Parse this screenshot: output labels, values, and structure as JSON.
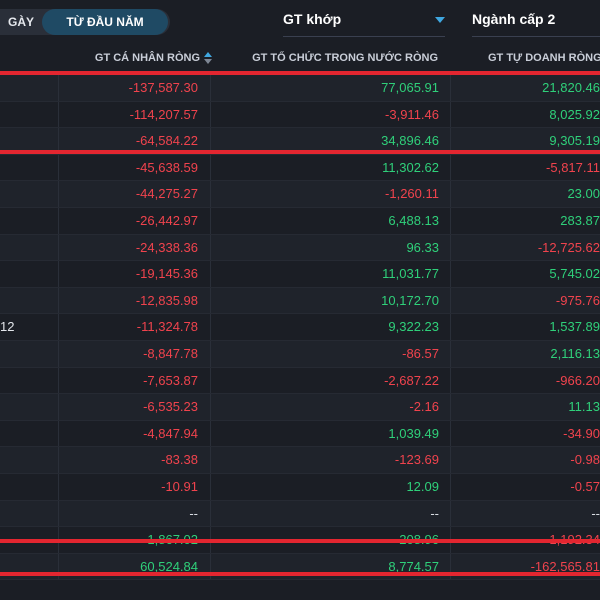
{
  "toolbar": {
    "day_label": "GÀY",
    "ytd_label": "TỪ ĐẦU NĂM",
    "value_type": "GT khớp",
    "sector_level": "Ngành cấp 2"
  },
  "columns": {
    "individual": "GT CÁ NHÂN RÒNG",
    "domestic_institution": "GT TỔ CHỨC TRONG NƯỚC RÒNG",
    "proprietary": "GT TỰ DOANH RÒNG"
  },
  "rows": [
    {
      "name": "",
      "v1": "-137,587.30",
      "v2": "77,065.91",
      "v3": "21,820.46"
    },
    {
      "name": "",
      "v1": "-114,207.57",
      "v2": "-3,911.46",
      "v3": "8,025.92"
    },
    {
      "name": "",
      "v1": "-64,584.22",
      "v2": "34,896.46",
      "v3": "9,305.19"
    },
    {
      "name": "",
      "v1": "-45,638.59",
      "v2": "11,302.62",
      "v3": "-5,817.11"
    },
    {
      "name": "",
      "v1": "-44,275.27",
      "v2": "-1,260.11",
      "v3": "23.00"
    },
    {
      "name": "",
      "v1": "-26,442.97",
      "v2": "6,488.13",
      "v3": "283.87"
    },
    {
      "name": "",
      "v1": "-24,338.36",
      "v2": "96.33",
      "v3": "-12,725.62"
    },
    {
      "name": "",
      "v1": "-19,145.36",
      "v2": "11,031.77",
      "v3": "5,745.02"
    },
    {
      "name": "",
      "v1": "-12,835.98",
      "v2": "10,172.70",
      "v3": "-975.76"
    },
    {
      "name": "12",
      "v1": "-11,324.78",
      "v2": "9,322.23",
      "v3": "1,537.89"
    },
    {
      "name": "",
      "v1": "-8,847.78",
      "v2": "-86.57",
      "v3": "2,116.13"
    },
    {
      "name": "",
      "v1": "-7,653.87",
      "v2": "-2,687.22",
      "v3": "-966.20"
    },
    {
      "name": "",
      "v1": "-6,535.23",
      "v2": "-2.16",
      "v3": "11.13"
    },
    {
      "name": "",
      "v1": "-4,847.94",
      "v2": "1,039.49",
      "v3": "-34.90"
    },
    {
      "name": "",
      "v1": "-83.38",
      "v2": "-123.69",
      "v3": "-0.98"
    },
    {
      "name": "",
      "v1": "-10.91",
      "v2": "12.09",
      "v3": "-0.57"
    },
    {
      "name": "",
      "v1": "--",
      "v2": "--",
      "v3": "--"
    },
    {
      "name": "",
      "v1": "1,867.02",
      "v2": "208.96",
      "v3": "-1,192.34"
    },
    {
      "name": "",
      "v1": "60,524.84",
      "v2": "8,774.57",
      "v3": "-162,565.81"
    }
  ],
  "colors": {
    "positive": "#2fd07a",
    "negative": "#f0434d",
    "highlight_line": "#e32630",
    "accent": "#3fa7e0"
  }
}
